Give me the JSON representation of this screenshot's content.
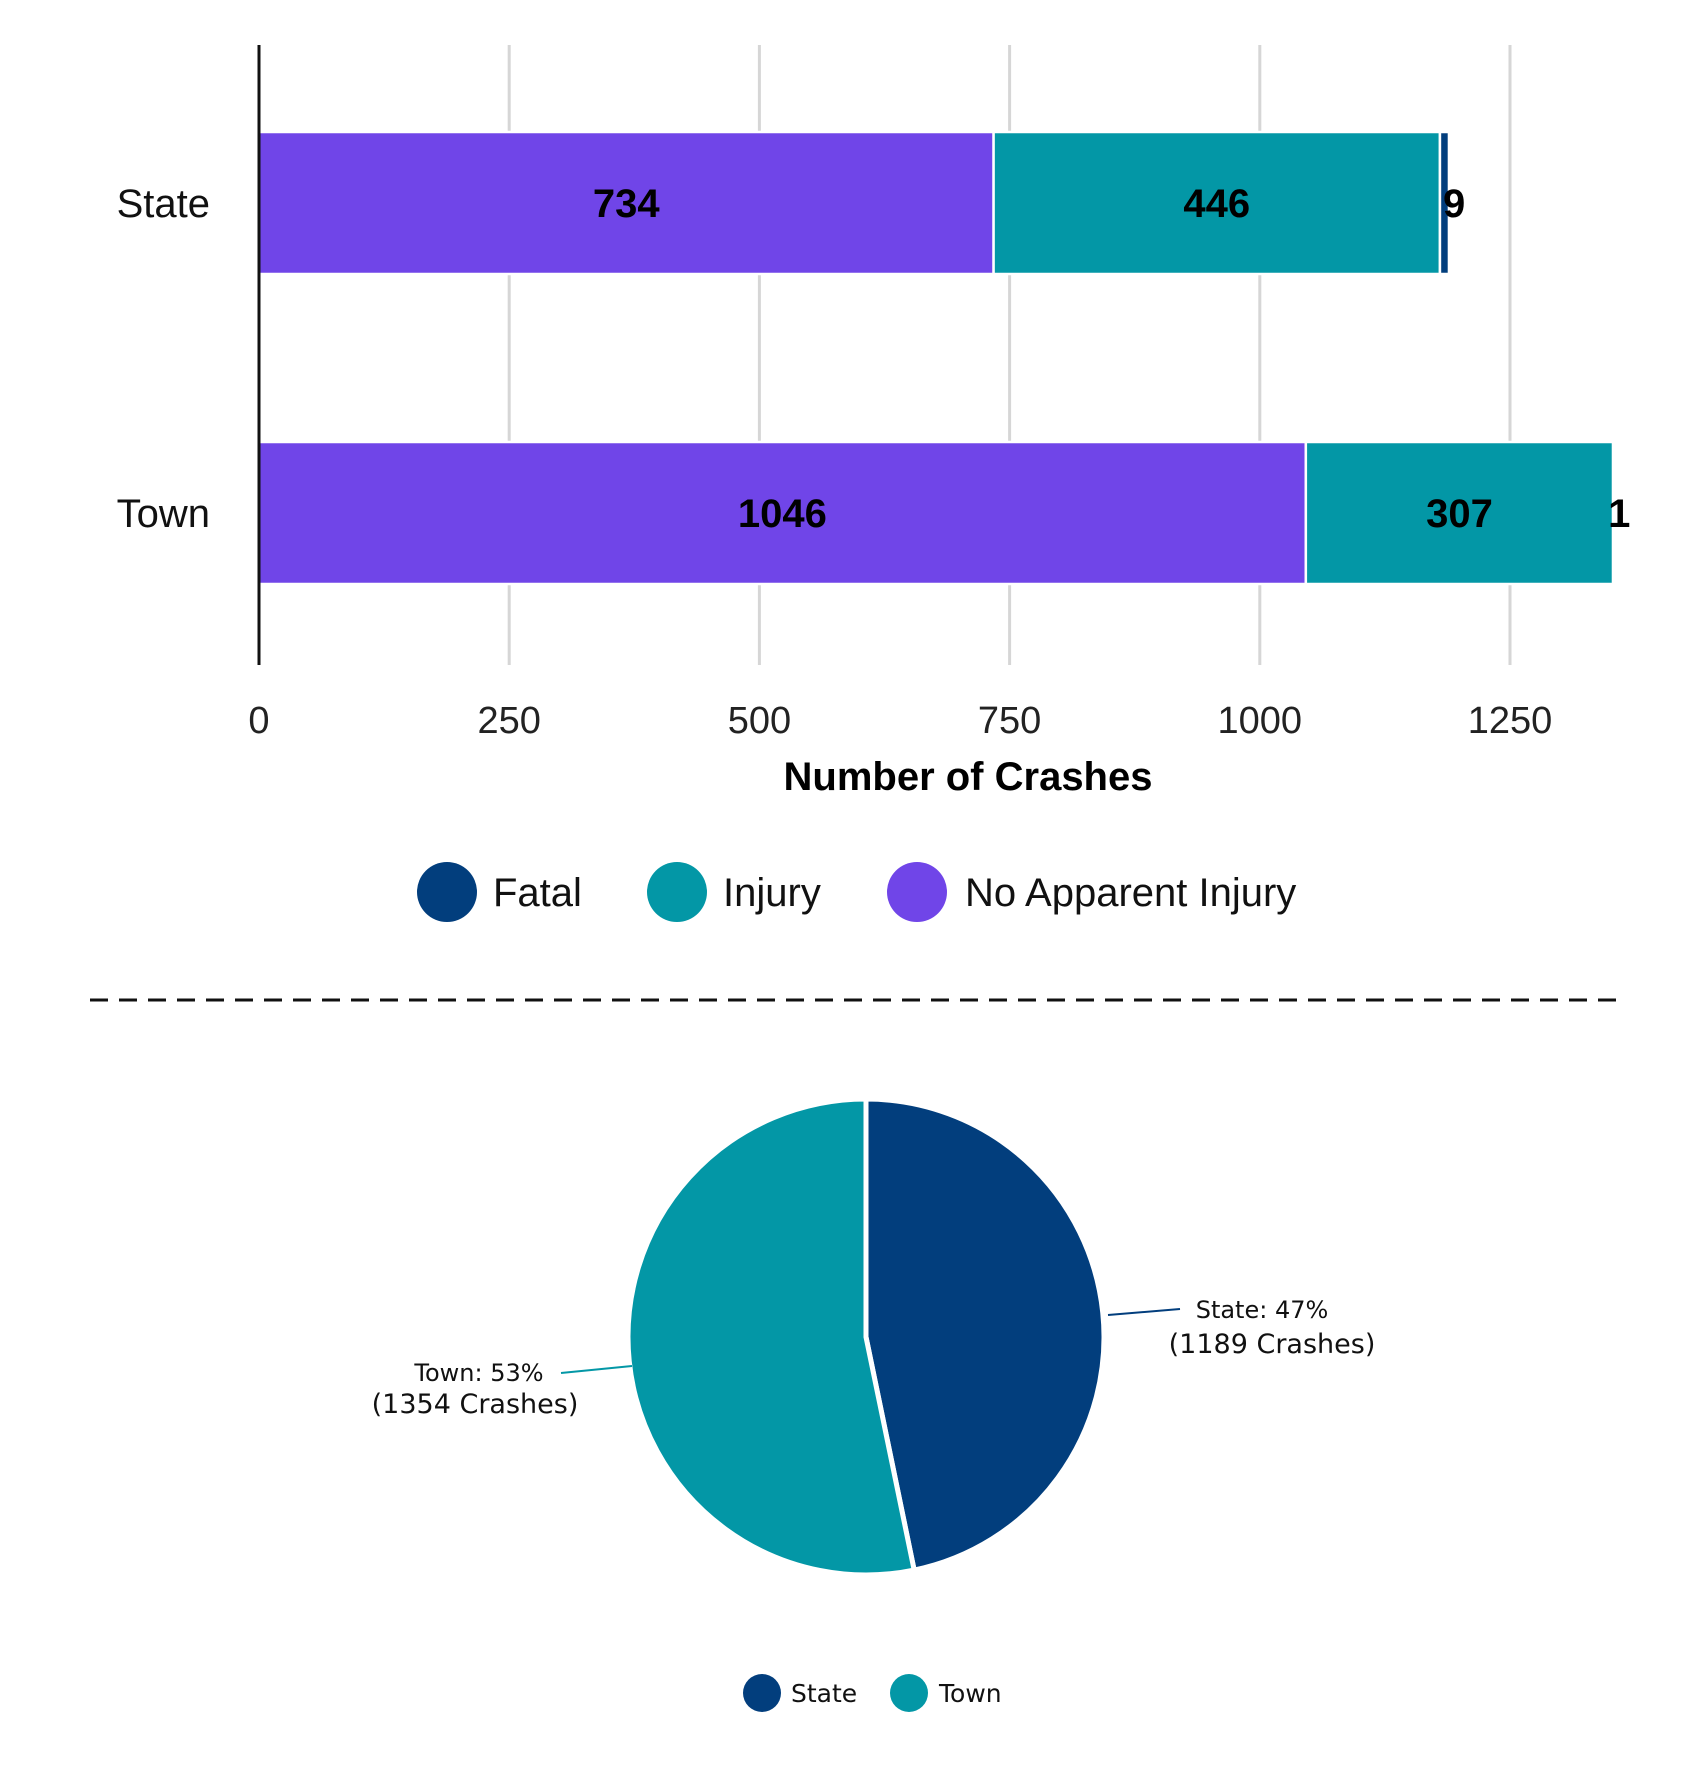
{
  "colors": {
    "fatal": "#023e7d",
    "injury": "#0397a6",
    "no_apparent_injury": "#7045e8",
    "state": "#023e7d",
    "town": "#0397a6"
  },
  "chart_data": [
    {
      "type": "bar",
      "orientation": "horizontal",
      "stacked": true,
      "categories": [
        "State",
        "Town"
      ],
      "series": [
        {
          "name": "No Apparent Injury",
          "values": [
            734,
            1046
          ]
        },
        {
          "name": "Injury",
          "values": [
            446,
            307
          ]
        },
        {
          "name": "Fatal",
          "values": [
            9,
            1
          ]
        }
      ],
      "data_labels": [
        [
          "734",
          "446",
          "9"
        ],
        [
          "1046",
          "307",
          "1"
        ]
      ],
      "title": "",
      "xlabel": "Number of Crashes",
      "ylabel": "",
      "xlim": [
        0,
        1354
      ],
      "xticks": [
        "0",
        "250",
        "500",
        "750",
        "1000",
        "1250"
      ],
      "grid": true,
      "legend": {
        "position": "bottom",
        "items": [
          "Fatal",
          "Injury",
          "No Apparent Injury"
        ]
      }
    },
    {
      "type": "pie",
      "slices": [
        {
          "name": "State",
          "value": 1189,
          "percent": 47,
          "label_line1": "State: 47%",
          "label_line2": "(1189 Crashes)"
        },
        {
          "name": "Town",
          "value": 1354,
          "percent": 53,
          "label_line1": "Town: 53%",
          "label_line2": "(1354 Crashes)"
        }
      ],
      "legend": {
        "position": "bottom",
        "items": [
          "State",
          "Town"
        ]
      }
    }
  ]
}
